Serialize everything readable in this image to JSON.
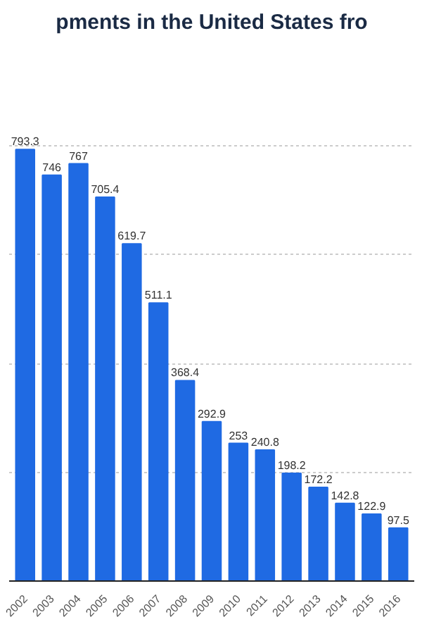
{
  "chart_data": {
    "type": "bar",
    "title": "pments in the United States fro",
    "categories": [
      "2002",
      "2003",
      "2004",
      "2005",
      "2006",
      "2007",
      "2008",
      "2009",
      "2010",
      "2011",
      "2012",
      "2013",
      "2014",
      "2015",
      "2016"
    ],
    "values": [
      793.3,
      746,
      767,
      705.4,
      619.7,
      511.1,
      368.4,
      292.9,
      253,
      240.8,
      198.2,
      172.2,
      142.8,
      122.9,
      97.5
    ],
    "color": "#1f6ae3",
    "grid": "y",
    "tick_labels": "x",
    "data_labels": true
  }
}
